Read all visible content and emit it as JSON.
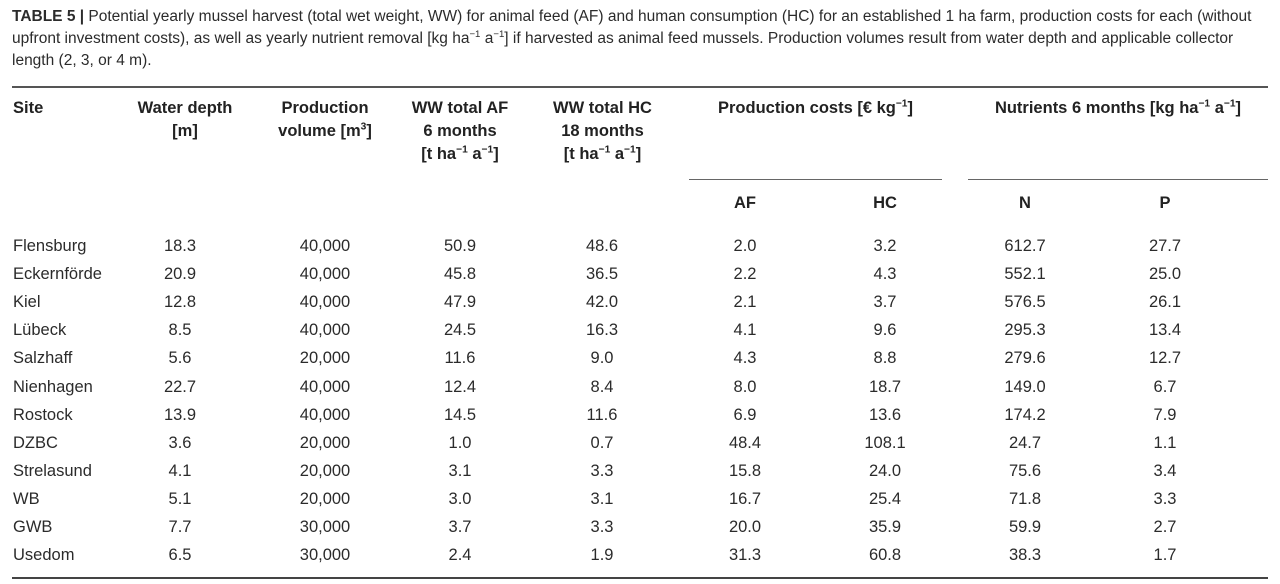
{
  "caption": {
    "label": "TABLE 5 |",
    "text_1": " Potential yearly mussel harvest (total wet weight, WW) for animal feed (AF) and human consumption (HC) for an established 1 ha farm, production costs for each (without upfront investment costs), as well as yearly nutrient removal [kg ha",
    "sup_1": "−1",
    "text_2": " a",
    "sup_2": "−1",
    "text_3": "] if harvested as animal feed mussels. Production volumes result from water depth and applicable collector length (2, 3, or 4 m)."
  },
  "headers": {
    "site": "Site",
    "depth_1": "Water depth",
    "depth_2": "[m]",
    "volume_1": "Production",
    "volume_2": "volume [m",
    "volume_sup": "3",
    "volume_3": "]",
    "af_1": "WW total AF",
    "af_2": "6 months",
    "hc_1": "WW total HC",
    "hc_2": "18 months",
    "unit_a": "[t ha",
    "unit_sup1": "−1",
    "unit_b": " a",
    "unit_sup2": "−1",
    "unit_c": "]",
    "costs_a": "Production costs [€ kg",
    "costs_sup": "−1",
    "costs_b": "]",
    "nutr_a": "Nutrients 6 months [kg ha",
    "nutr_sup1": "−1",
    "nutr_b": " a",
    "nutr_sup2": "−1",
    "nutr_c": "]",
    "sub_af": "AF",
    "sub_hc": "HC",
    "sub_n": "N",
    "sub_p": "P"
  },
  "rows": [
    {
      "site": "Flensburg",
      "depth": "18.3",
      "volume": "40,000",
      "ww_af": "50.9",
      "ww_hc": "48.6",
      "cost_af": "2.0",
      "cost_hc": "3.2",
      "n": "612.7",
      "p": "27.7"
    },
    {
      "site": "Eckernförde",
      "depth": "20.9",
      "volume": "40,000",
      "ww_af": "45.8",
      "ww_hc": "36.5",
      "cost_af": "2.2",
      "cost_hc": "4.3",
      "n": "552.1",
      "p": "25.0"
    },
    {
      "site": "Kiel",
      "depth": "12.8",
      "volume": "40,000",
      "ww_af": "47.9",
      "ww_hc": "42.0",
      "cost_af": "2.1",
      "cost_hc": "3.7",
      "n": "576.5",
      "p": "26.1"
    },
    {
      "site": "Lübeck",
      "depth": "8.5",
      "volume": "40,000",
      "ww_af": "24.5",
      "ww_hc": "16.3",
      "cost_af": "4.1",
      "cost_hc": "9.6",
      "n": "295.3",
      "p": "13.4"
    },
    {
      "site": "Salzhaff",
      "depth": "5.6",
      "volume": "20,000",
      "ww_af": "11.6",
      "ww_hc": "9.0",
      "cost_af": "4.3",
      "cost_hc": "8.8",
      "n": "279.6",
      "p": "12.7"
    },
    {
      "site": "Nienhagen",
      "depth": "22.7",
      "volume": "40,000",
      "ww_af": "12.4",
      "ww_hc": "8.4",
      "cost_af": "8.0",
      "cost_hc": "18.7",
      "n": "149.0",
      "p": "6.7"
    },
    {
      "site": "Rostock",
      "depth": "13.9",
      "volume": "40,000",
      "ww_af": "14.5",
      "ww_hc": "11.6",
      "cost_af": "6.9",
      "cost_hc": "13.6",
      "n": "174.2",
      "p": "7.9"
    },
    {
      "site": "DZBC",
      "depth": "3.6",
      "volume": "20,000",
      "ww_af": "1.0",
      "ww_hc": "0.7",
      "cost_af": "48.4",
      "cost_hc": "108.1",
      "n": "24.7",
      "p": "1.1"
    },
    {
      "site": "Strelasund",
      "depth": "4.1",
      "volume": "20,000",
      "ww_af": "3.1",
      "ww_hc": "3.3",
      "cost_af": "15.8",
      "cost_hc": "24.0",
      "n": "75.6",
      "p": "3.4"
    },
    {
      "site": "WB",
      "depth": "5.1",
      "volume": "20,000",
      "ww_af": "3.0",
      "ww_hc": "3.1",
      "cost_af": "16.7",
      "cost_hc": "25.4",
      "n": "71.8",
      "p": "3.3"
    },
    {
      "site": "GWB",
      "depth": "7.7",
      "volume": "30,000",
      "ww_af": "3.7",
      "ww_hc": "3.3",
      "cost_af": "20.0",
      "cost_hc": "35.9",
      "n": "59.9",
      "p": "2.7"
    },
    {
      "site": "Usedom",
      "depth": "6.5",
      "volume": "30,000",
      "ww_af": "2.4",
      "ww_hc": "1.9",
      "cost_af": "31.3",
      "cost_hc": "60.8",
      "n": "38.3",
      "p": "1.7"
    }
  ]
}
